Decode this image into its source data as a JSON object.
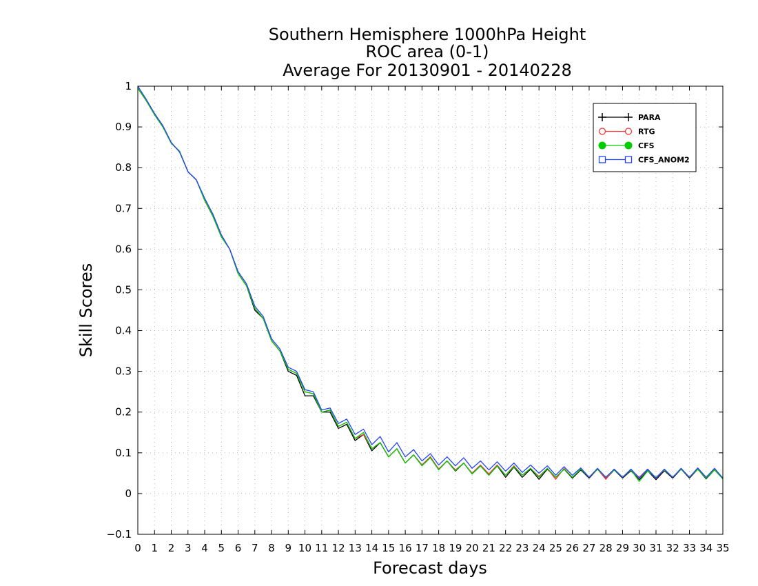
{
  "chart_data": {
    "type": "line",
    "title": [
      "Southern Hemisphere 1000hPa Height",
      "ROC area (0-1)",
      "Average For 20130901 - 20140228"
    ],
    "xlabel": "Forecast days",
    "ylabel": "Skill Scores",
    "xlim": [
      0,
      35
    ],
    "ylim": [
      -0.1,
      1
    ],
    "x_ticks": [
      0,
      1,
      2,
      3,
      4,
      5,
      6,
      7,
      8,
      9,
      10,
      11,
      12,
      13,
      14,
      15,
      16,
      17,
      18,
      19,
      20,
      21,
      22,
      23,
      24,
      25,
      26,
      27,
      28,
      29,
      30,
      31,
      32,
      33,
      34,
      35
    ],
    "y_ticks": [
      -0.1,
      0,
      0.1,
      0.2,
      0.3,
      0.4,
      0.5,
      0.6,
      0.7,
      0.8,
      0.9,
      1
    ],
    "y_tick_labels": [
      "−0.1",
      "0",
      "0.1",
      "0.2",
      "0.3",
      "0.4",
      "0.5",
      "0.6",
      "0.7",
      "0.8",
      "0.9",
      "1"
    ],
    "grid": true,
    "legend_position": "top-right",
    "x": [
      0,
      0.5,
      1,
      1.5,
      2,
      2.5,
      3,
      3.5,
      4,
      4.5,
      5,
      5.5,
      6,
      6.5,
      7,
      7.5,
      8,
      8.5,
      9,
      9.5,
      10,
      10.5,
      11,
      11.5,
      12,
      12.5,
      13,
      13.5,
      14,
      14.5,
      15,
      15.5,
      16,
      16.5,
      17,
      17.5,
      18,
      18.5,
      19,
      19.5,
      20,
      20.5,
      21,
      21.5,
      22,
      22.5,
      23,
      23.5,
      24,
      24.5,
      25,
      25.5,
      26,
      26.5,
      27,
      27.5,
      28,
      28.5,
      29,
      29.5,
      30,
      30.5,
      31,
      31.5,
      32,
      32.5,
      33,
      33.5,
      34,
      34.5,
      35
    ],
    "series": [
      {
        "name": "PARA",
        "color": "#000000",
        "marker": "plus",
        "values": [
          0.995,
          0.965,
          0.93,
          0.9,
          0.86,
          0.84,
          0.79,
          0.77,
          0.72,
          0.68,
          0.63,
          0.6,
          0.54,
          0.51,
          0.45,
          0.43,
          0.375,
          0.35,
          0.3,
          0.29,
          0.24,
          0.24,
          0.2,
          0.2,
          0.16,
          0.17,
          0.13,
          0.145,
          0.105,
          0.125,
          0.09,
          0.11,
          0.075,
          0.095,
          0.07,
          0.09,
          0.06,
          0.08,
          0.055,
          0.075,
          0.048,
          0.068,
          0.045,
          0.068,
          0.04,
          0.065,
          0.04,
          0.06,
          0.035,
          0.06,
          0.04,
          0.06,
          0.038,
          0.058,
          0.038,
          0.06,
          0.036,
          0.058,
          0.038,
          0.056,
          0.034,
          0.056,
          0.034,
          0.056,
          0.038,
          0.06,
          0.038,
          0.06,
          0.036,
          0.058,
          0.036
        ]
      },
      {
        "name": "RTG",
        "color": "#ff3333",
        "marker": "circle",
        "values": [
          0.995,
          0.965,
          0.93,
          0.9,
          0.86,
          0.84,
          0.79,
          0.77,
          0.72,
          0.68,
          0.63,
          0.6,
          0.54,
          0.51,
          0.455,
          0.43,
          0.375,
          0.35,
          0.305,
          0.295,
          0.25,
          0.245,
          0.2,
          0.205,
          0.165,
          0.175,
          0.135,
          0.145,
          0.11,
          0.125,
          0.09,
          0.11,
          0.075,
          0.095,
          0.07,
          0.09,
          0.06,
          0.08,
          0.058,
          0.075,
          0.05,
          0.07,
          0.048,
          0.07,
          0.045,
          0.068,
          0.045,
          0.062,
          0.042,
          0.062,
          0.035,
          0.062,
          0.04,
          0.06,
          0.04,
          0.06,
          0.035,
          0.06,
          0.04,
          0.058,
          0.04,
          0.06,
          0.038,
          0.058,
          0.04,
          0.06,
          0.04,
          0.06,
          0.038,
          0.06,
          0.038
        ]
      },
      {
        "name": "CFS",
        "color": "#00cc00",
        "marker": "filled-circle",
        "values": [
          0.995,
          0.965,
          0.93,
          0.9,
          0.86,
          0.84,
          0.79,
          0.77,
          0.72,
          0.68,
          0.63,
          0.6,
          0.54,
          0.51,
          0.455,
          0.43,
          0.375,
          0.35,
          0.305,
          0.295,
          0.25,
          0.245,
          0.2,
          0.205,
          0.165,
          0.175,
          0.135,
          0.15,
          0.11,
          0.125,
          0.09,
          0.11,
          0.075,
          0.095,
          0.068,
          0.088,
          0.058,
          0.08,
          0.056,
          0.075,
          0.048,
          0.068,
          0.045,
          0.068,
          0.045,
          0.066,
          0.045,
          0.062,
          0.04,
          0.062,
          0.04,
          0.06,
          0.04,
          0.06,
          0.04,
          0.06,
          0.04,
          0.058,
          0.04,
          0.058,
          0.03,
          0.055,
          0.04,
          0.058,
          0.04,
          0.06,
          0.04,
          0.06,
          0.038,
          0.058,
          0.036
        ]
      },
      {
        "name": "CFS_ANOM2",
        "color": "#2244ff",
        "marker": "square",
        "values": [
          1.0,
          0.968,
          0.933,
          0.903,
          0.862,
          0.838,
          0.79,
          0.77,
          0.725,
          0.685,
          0.635,
          0.6,
          0.545,
          0.515,
          0.46,
          0.435,
          0.38,
          0.355,
          0.31,
          0.3,
          0.255,
          0.25,
          0.205,
          0.21,
          0.172,
          0.183,
          0.145,
          0.158,
          0.12,
          0.14,
          0.102,
          0.125,
          0.09,
          0.108,
          0.08,
          0.098,
          0.07,
          0.09,
          0.068,
          0.088,
          0.062,
          0.08,
          0.058,
          0.078,
          0.055,
          0.075,
          0.052,
          0.07,
          0.05,
          0.068,
          0.045,
          0.066,
          0.045,
          0.063,
          0.04,
          0.062,
          0.04,
          0.06,
          0.04,
          0.06,
          0.038,
          0.06,
          0.038,
          0.06,
          0.04,
          0.062,
          0.04,
          0.063,
          0.04,
          0.062,
          0.038
        ]
      }
    ]
  }
}
